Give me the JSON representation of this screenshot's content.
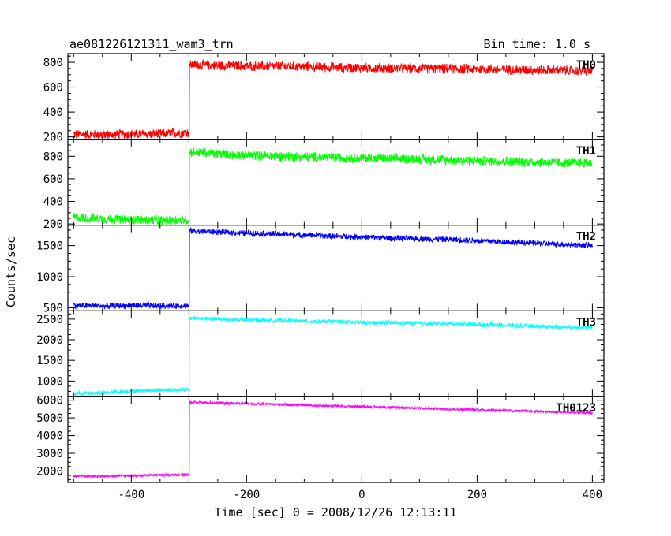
{
  "header": {
    "title": "ae081226121311_wam3_trn",
    "bin_time": "Bin time: 1.0 s"
  },
  "chart_data": {
    "type": "line",
    "title": "ae081226121311_wam3_trn",
    "xlabel": "Time [sec] 0 = 2008/12/26 12:13:11",
    "ylabel": "Counts/sec",
    "xlim": [
      -510,
      420
    ],
    "x_ticks": [
      -400,
      -200,
      0,
      200,
      400
    ],
    "grid": false,
    "panels": [
      {
        "name": "TH0",
        "color": "#ff0000",
        "ylim": [
          180,
          870
        ],
        "y_ticks": [
          200,
          400,
          600,
          800
        ],
        "x": [
          -500,
          -450,
          -400,
          -350,
          -301,
          -299,
          -250,
          -200,
          -150,
          -100,
          -50,
          0,
          50,
          100,
          150,
          200,
          250,
          300,
          350,
          400
        ],
        "values": [
          220,
          218,
          222,
          225,
          235,
          780,
          775,
          770,
          768,
          765,
          760,
          755,
          752,
          750,
          748,
          745,
          742,
          738,
          735,
          730
        ],
        "noise": 45
      },
      {
        "name": "TH1",
        "color": "#00ff00",
        "ylim": [
          190,
          950
        ],
        "y_ticks": [
          200,
          400,
          600,
          800
        ],
        "x": [
          -500,
          -450,
          -400,
          -350,
          -301,
          -299,
          -250,
          -200,
          -150,
          -100,
          -50,
          0,
          50,
          100,
          150,
          200,
          250,
          300,
          350,
          400
        ],
        "values": [
          260,
          245,
          238,
          232,
          235,
          840,
          820,
          810,
          800,
          795,
          790,
          785,
          780,
          775,
          768,
          760,
          755,
          748,
          742,
          740
        ],
        "noise": 50
      },
      {
        "name": "TH2",
        "color": "#0000ff",
        "ylim": [
          450,
          1830
        ],
        "y_ticks": [
          500,
          1000,
          1500
        ],
        "x": [
          -500,
          -450,
          -400,
          -350,
          -301,
          -299,
          -250,
          -200,
          -150,
          -100,
          -50,
          0,
          50,
          100,
          150,
          200,
          250,
          300,
          350,
          400
        ],
        "values": [
          540,
          530,
          535,
          530,
          535,
          1740,
          1720,
          1700,
          1690,
          1670,
          1650,
          1640,
          1620,
          1610,
          1600,
          1580,
          1560,
          1540,
          1520,
          1500
        ],
        "noise": 55
      },
      {
        "name": "TH3",
        "color": "#00ffff",
        "ylim": [
          620,
          2700
        ],
        "y_ticks": [
          1000,
          1500,
          2000,
          2500
        ],
        "x": [
          -500,
          -450,
          -400,
          -350,
          -301,
          -299,
          -250,
          -200,
          -150,
          -100,
          -50,
          0,
          50,
          100,
          150,
          200,
          250,
          300,
          350,
          400
        ],
        "values": [
          700,
          710,
          760,
          780,
          790,
          2530,
          2500,
          2480,
          2470,
          2450,
          2440,
          2420,
          2410,
          2400,
          2390,
          2370,
          2350,
          2330,
          2310,
          2300
        ],
        "noise": 60
      },
      {
        "name": "TH0123",
        "color": "#ff00ff",
        "ylim": [
          1350,
          6200
        ],
        "y_ticks": [
          2000,
          3000,
          4000,
          5000,
          6000
        ],
        "x": [
          -500,
          -450,
          -400,
          -350,
          -301,
          -299,
          -250,
          -200,
          -150,
          -100,
          -50,
          0,
          50,
          100,
          150,
          200,
          250,
          300,
          350,
          400
        ],
        "values": [
          1720,
          1690,
          1740,
          1770,
          1790,
          5880,
          5850,
          5800,
          5770,
          5720,
          5680,
          5640,
          5600,
          5550,
          5500,
          5460,
          5420,
          5370,
          5320,
          5280
        ],
        "noise": 90
      }
    ]
  }
}
